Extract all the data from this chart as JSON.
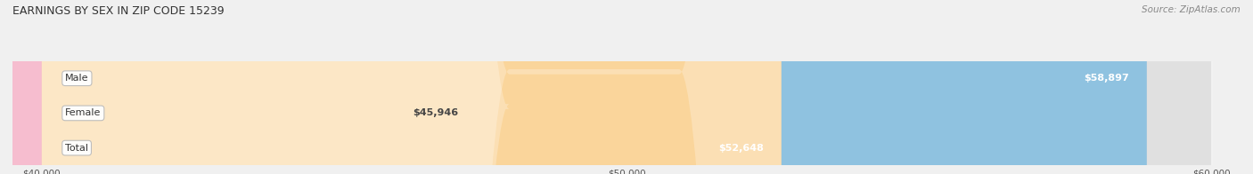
{
  "title": "EARNINGS BY SEX IN ZIP CODE 15239",
  "source": "Source: ZipAtlas.com",
  "categories": [
    "Male",
    "Female",
    "Total"
  ],
  "values": [
    58897,
    45946,
    52648
  ],
  "bar_colors": [
    "#6aaed6",
    "#f4a8c0",
    "#f9c87a"
  ],
  "value_labels": [
    "$58,897",
    "$45,946",
    "$52,648"
  ],
  "xmin": 40000,
  "xmax": 60000,
  "xticks": [
    40000,
    50000,
    60000
  ],
  "xtick_labels": [
    "$40,000",
    "$50,000",
    "$60,000"
  ],
  "background_color": "#f0f0f0",
  "bar_background_color": "#e0e0e0",
  "title_fontsize": 9,
  "source_fontsize": 7.5,
  "label_fontsize": 8,
  "value_fontsize": 8
}
